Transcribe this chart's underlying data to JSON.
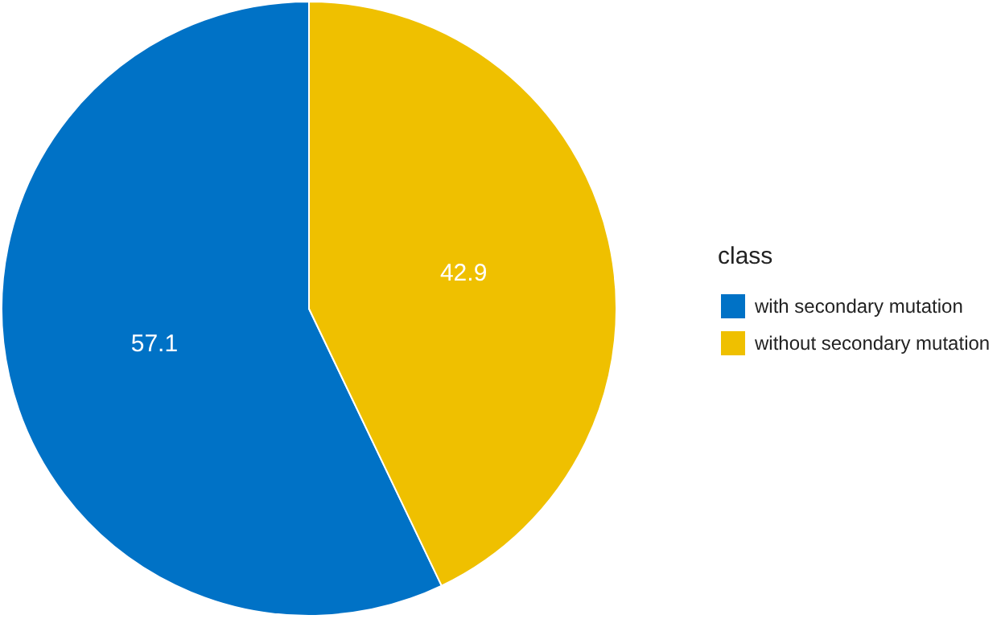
{
  "chart_data": {
    "type": "pie",
    "legend_title": "class",
    "categories": [
      "with secondary mutation",
      "without secondary mutation"
    ],
    "values": [
      57.1,
      42.9
    ],
    "colors": [
      "#0072c6",
      "#efc000"
    ],
    "data_labels": true,
    "legend": "right"
  }
}
